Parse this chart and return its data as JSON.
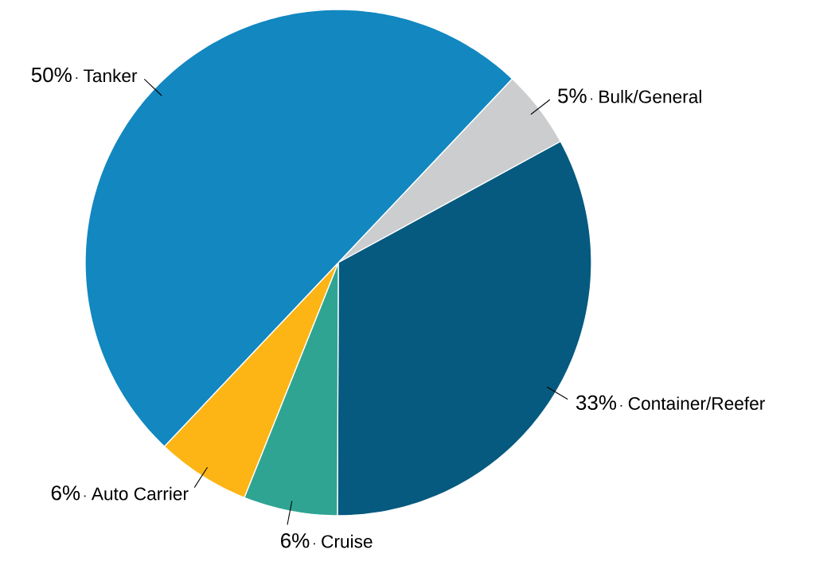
{
  "chart_data": {
    "type": "pie",
    "categories": [
      "Bulk/General",
      "Container/Reefer",
      "Cruise",
      "Auto Carrier",
      "Tanker"
    ],
    "values": [
      5,
      33,
      6,
      6,
      50
    ],
    "value_labels": [
      "5%",
      "33%",
      "6%",
      "6%",
      "50%"
    ],
    "colors": [
      "#cccdcf",
      "#065a7f",
      "#2fa493",
      "#fdb515",
      "#1287c0"
    ]
  }
}
